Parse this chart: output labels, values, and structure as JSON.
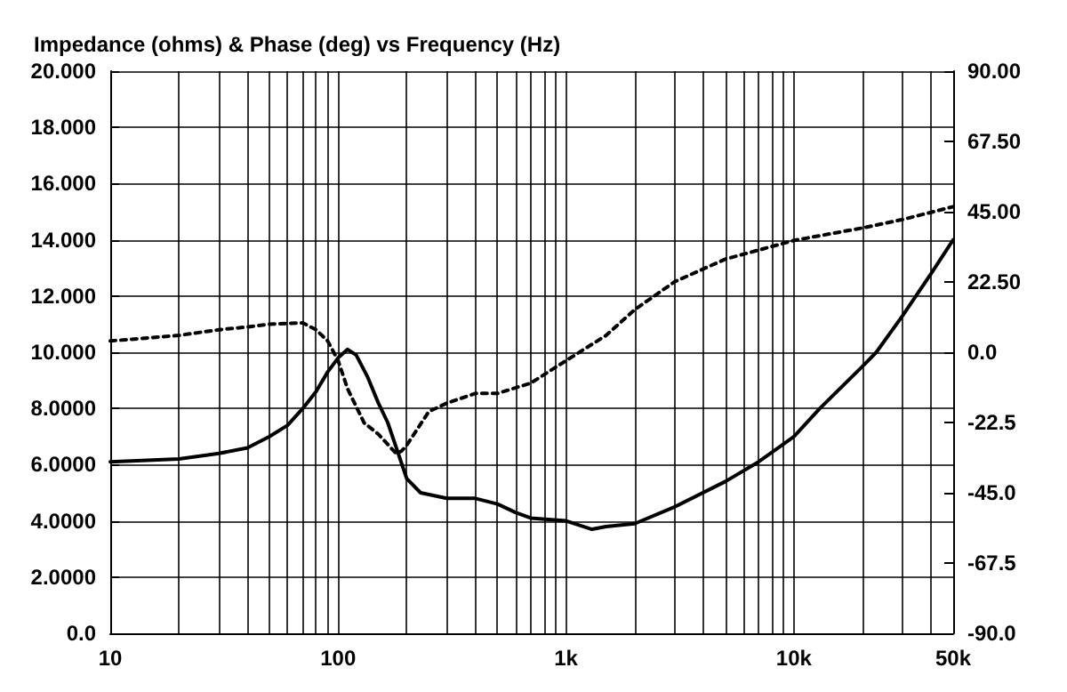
{
  "chart_data": {
    "type": "line",
    "title": "Impedance (ohms) & Phase (deg) vs Frequency (Hz)",
    "log": "x",
    "grid": true,
    "marker": "none",
    "xlim": [
      10,
      50000
    ],
    "xticks": [
      {
        "value": 10,
        "label": "10"
      },
      {
        "value": 20,
        "label": null
      },
      {
        "value": 30,
        "label": null
      },
      {
        "value": 40,
        "label": null
      },
      {
        "value": 50,
        "label": null
      },
      {
        "value": 60,
        "label": null
      },
      {
        "value": 70,
        "label": null
      },
      {
        "value": 80,
        "label": null
      },
      {
        "value": 90,
        "label": null
      },
      {
        "value": 100,
        "label": "100"
      },
      {
        "value": 200,
        "label": null
      },
      {
        "value": 300,
        "label": null
      },
      {
        "value": 400,
        "label": null
      },
      {
        "value": 500,
        "label": null
      },
      {
        "value": 600,
        "label": null
      },
      {
        "value": 700,
        "label": null
      },
      {
        "value": 800,
        "label": null
      },
      {
        "value": 900,
        "label": null
      },
      {
        "value": 1000,
        "label": "1k"
      },
      {
        "value": 2000,
        "label": null
      },
      {
        "value": 3000,
        "label": null
      },
      {
        "value": 4000,
        "label": null
      },
      {
        "value": 5000,
        "label": null
      },
      {
        "value": 6000,
        "label": null
      },
      {
        "value": 7000,
        "label": null
      },
      {
        "value": 8000,
        "label": null
      },
      {
        "value": 9000,
        "label": null
      },
      {
        "value": 10000,
        "label": "10k"
      },
      {
        "value": 20000,
        "label": null
      },
      {
        "value": 30000,
        "label": null
      },
      {
        "value": 40000,
        "label": null
      },
      {
        "value": 50000,
        "label": "50k"
      }
    ],
    "ylim": [
      0,
      20
    ],
    "yticks": [
      {
        "value": 0,
        "label": "0.0"
      },
      {
        "value": 2,
        "label": "2.0000"
      },
      {
        "value": 4,
        "label": "4.0000"
      },
      {
        "value": 6,
        "label": "6.0000"
      },
      {
        "value": 8,
        "label": "8.0000"
      },
      {
        "value": 10,
        "label": "10.000"
      },
      {
        "value": 12,
        "label": "12.000"
      },
      {
        "value": 14,
        "label": "14.000"
      },
      {
        "value": 16,
        "label": "16.000"
      },
      {
        "value": 18,
        "label": "18.000"
      },
      {
        "value": 20,
        "label": "20.000"
      }
    ],
    "y2lim": [
      -90,
      90
    ],
    "y2ticks": [
      {
        "value": -90,
        "label": "-90.0"
      },
      {
        "value": -67.5,
        "label": "-67.5"
      },
      {
        "value": -45,
        "label": "-45.0"
      },
      {
        "value": -22.5,
        "label": "-22.5"
      },
      {
        "value": 0,
        "label": "0.0"
      },
      {
        "value": 22.5,
        "label": "22.50"
      },
      {
        "value": 45,
        "label": "45.00"
      },
      {
        "value": 67.5,
        "label": "67.50"
      },
      {
        "value": 90,
        "label": "90.00"
      }
    ],
    "series": [
      {
        "color": "#000000",
        "line_style": "solid",
        "x": [
          10,
          20,
          30,
          40,
          50,
          60,
          70,
          80,
          90,
          100,
          110,
          120,
          135,
          150,
          165,
          180,
          200,
          230,
          300,
          400,
          500,
          600,
          700,
          1000,
          1300,
          1500,
          2000,
          3000,
          5000,
          7000,
          10000,
          13000,
          20000,
          23000,
          30000,
          40000,
          50000
        ],
        "values": [
          6.1,
          6.2,
          6.4,
          6.6,
          7.0,
          7.4,
          8.0,
          8.6,
          9.3,
          9.8,
          10.1,
          9.9,
          9.1,
          8.2,
          7.5,
          6.6,
          5.5,
          5.0,
          4.8,
          4.8,
          4.6,
          4.3,
          4.1,
          4.0,
          3.7,
          3.8,
          3.9,
          4.5,
          5.4,
          6.1,
          7.0,
          8.0,
          9.5,
          10.0,
          11.3,
          12.8,
          14.0
        ]
      },
      {
        "color": "#000000",
        "line_style": "dashed",
        "axis": "y2",
        "x": [
          10,
          20,
          30,
          40,
          50,
          70,
          80,
          90,
          100,
          110,
          130,
          150,
          180,
          190,
          200,
          250,
          300,
          400,
          500,
          700,
          1000,
          1500,
          2000,
          3000,
          5000,
          10000,
          20000,
          30000,
          50000
        ],
        "values": [
          3.6,
          5.4,
          7.2,
          8.1,
          9.0,
          9.4,
          7.2,
          3.6,
          -2.7,
          -11.7,
          -22.6,
          -26.2,
          -32.5,
          -31.6,
          -29.8,
          -19.0,
          -16.3,
          -13.2,
          -13.2,
          -9.9,
          -2.7,
          5.4,
          13.6,
          22.6,
          29.8,
          35.8,
          39.8,
          42.5,
          46.6
        ]
      }
    ]
  }
}
